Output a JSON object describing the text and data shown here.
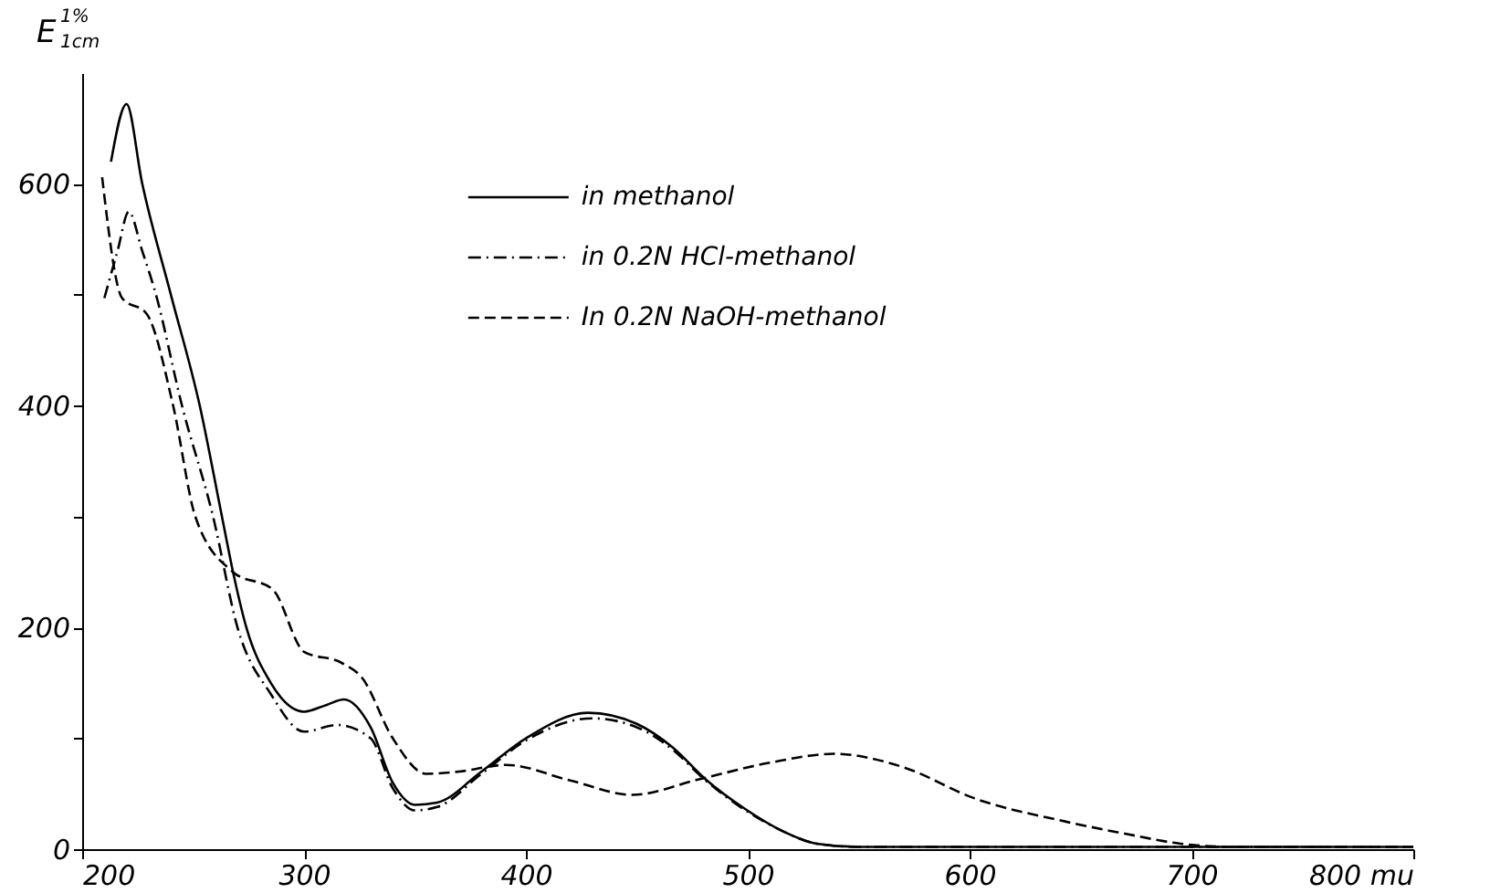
{
  "chart_data": {
    "type": "line",
    "ylabel": "E$^{1%}$$_{1cm}$",
    "xlim": [
      200,
      800
    ],
    "xticks": [
      200,
      300,
      400,
      500,
      600,
      700,
      {
        "value": 800,
        "label": "800 mu"
      }
    ],
    "ylim": [
      0,
      700
    ],
    "yticks": [
      0,
      {
        "value": 100,
        "label": null
      },
      200,
      {
        "value": 300,
        "label": null
      },
      400,
      {
        "value": 500,
        "label": null
      },
      600
    ],
    "grid": false,
    "legend": "top",
    "marker": "none",
    "series": [
      {
        "name": "in  methanol",
        "color": "#000000",
        "line_style": "solid",
        "x": [
          213,
          220,
          227,
          240,
          253,
          263,
          268,
          274,
          285,
          300,
          310,
          318,
          330,
          340,
          350,
          360,
          380,
          400,
          428,
          450,
          466,
          481,
          499,
          515,
          531,
          550,
          600,
          700,
          800
        ],
        "values": [
          620,
          672,
          601,
          500,
          400,
          300,
          250,
          200,
          150,
          124,
          130,
          135,
          110,
          60,
          40,
          42,
          70,
          100,
          123,
          113,
          92,
          63,
          36,
          17,
          5,
          2,
          2,
          2,
          2
        ]
      },
      {
        "name": "in 0.2N HCl-methanol",
        "color": "#000000",
        "line_style": "dashdot",
        "x": [
          210,
          216,
          221,
          227,
          233,
          245,
          259,
          270,
          285,
          300,
          315,
          330,
          340,
          350,
          360,
          380,
          400,
          430,
          450,
          466,
          481,
          499,
          515,
          531,
          550,
          600,
          700,
          800
        ],
        "values": [
          497,
          540,
          575,
          540,
          502,
          400,
          300,
          200,
          140,
          106,
          112,
          100,
          55,
          35,
          38,
          68,
          98,
          118,
          110,
          90,
          62,
          35,
          17,
          5,
          2,
          2,
          2,
          2
        ]
      },
      {
        "name": "In 0.2N NaOH-methanol",
        "color": "#000000",
        "line_style": "dashed",
        "x": [
          209,
          218,
          229,
          241,
          251,
          268,
          286,
          300,
          317,
          326,
          340,
          355,
          370,
          391,
          420,
          448,
          478,
          510,
          539,
          570,
          602,
          643,
          670,
          695,
          720,
          800
        ],
        "values": [
          606,
          497,
          483,
          400,
          300,
          250,
          234,
          178,
          168,
          155,
          100,
          68,
          70,
          76,
          62,
          49,
          63,
          78,
          86,
          74,
          46,
          25,
          14,
          5,
          2,
          2
        ]
      }
    ]
  }
}
